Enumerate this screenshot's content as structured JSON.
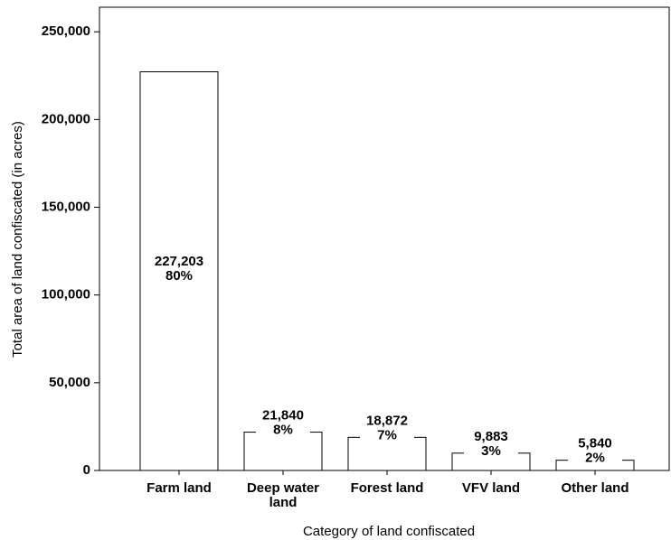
{
  "chart_data": {
    "type": "bar",
    "x_label": "Category of land confiscated",
    "y_label": "Total area of land confiscated (in acres)",
    "categories": [
      "Farm land",
      "Deep water land",
      "Forest land",
      "VFV land",
      "Other land"
    ],
    "values": [
      227203,
      21840,
      18872,
      9883,
      5840
    ],
    "value_labels": [
      "227,203",
      "21,840",
      "18,872",
      "9,883",
      "5,840"
    ],
    "percent_labels": [
      "80%",
      "8%",
      "7%",
      "3%",
      "2%"
    ],
    "color": "#ffffff",
    "ylim": [
      0,
      264000
    ],
    "yticks": [
      0,
      {
        "value": 50000,
        "label": "50,000"
      },
      {
        "value": 100000,
        "label": "100,000"
      },
      {
        "value": 150000,
        "label": "150,000"
      },
      {
        "value": 200000,
        "label": "200,000"
      },
      {
        "value": 250000,
        "label": "250,000"
      }
    ]
  }
}
